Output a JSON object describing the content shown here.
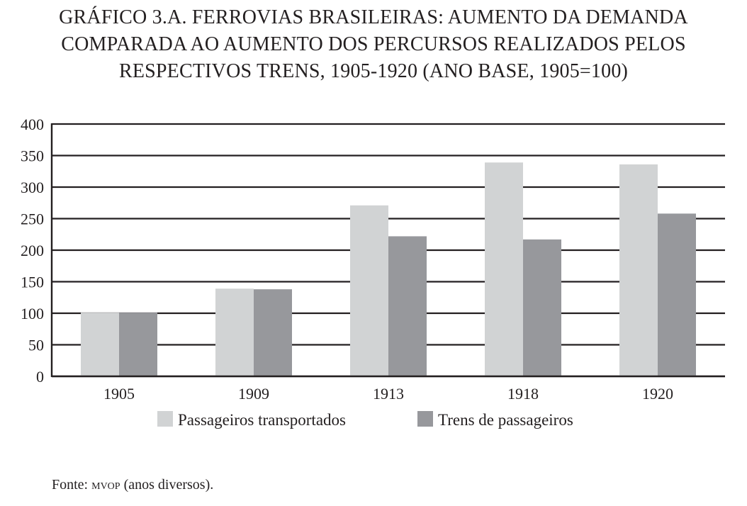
{
  "title_lines": [
    "GRÁFICO 3.A. FERROVIAS BRASILEIRAS: AUMENTO DA DEMANDA",
    "COMPARADA AO AUMENTO DOS PERCURSOS REALIZADOS PELOS",
    "RESPECTIVOS TRENS, 1905-1920 (ANO BASE, 1905=100)"
  ],
  "source": {
    "prefix": "Fonte: ",
    "abbr": "MVOP",
    "suffix": " (anos diversos)."
  },
  "chart_data": {
    "type": "bar",
    "title": "GRÁFICO 3.A. FERROVIAS BRASILEIRAS: AUMENTO DA DEMANDA COMPARADA AO AUMENTO DOS PERCURSOS REALIZADOS PELOS RESPECTIVOS TRENS, 1905-1920 (ANO BASE, 1905=100)",
    "categories": [
      "1905",
      "1909",
      "1913",
      "1918",
      "1920"
    ],
    "series": [
      {
        "name": "Passageiros transportados",
        "color": "#d1d3d4",
        "values": [
          101,
          139,
          271,
          339,
          336
        ]
      },
      {
        "name": "Trens de passageiros",
        "color": "#97989c",
        "values": [
          101,
          138,
          222,
          217,
          258
        ]
      }
    ],
    "ylim": [
      0,
      400
    ],
    "yticks": [
      0,
      50,
      100,
      150,
      200,
      250,
      300,
      350,
      400
    ],
    "grid": true,
    "legend": "bottom",
    "xlabel": "",
    "ylabel": ""
  }
}
